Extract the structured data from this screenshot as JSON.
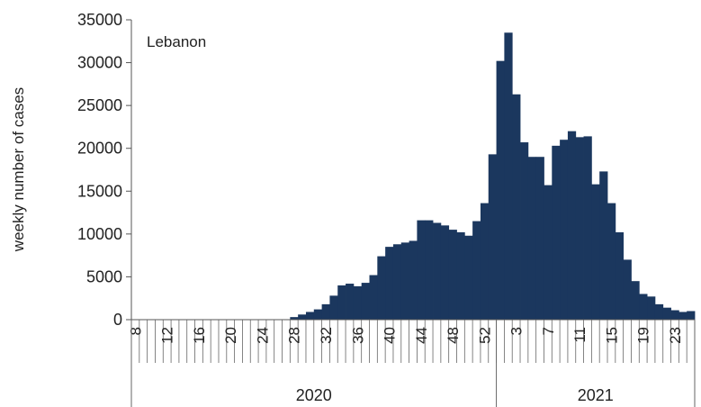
{
  "chart_data": {
    "type": "bar",
    "annotation": "Lebanon",
    "ylabel": "weekly number of cases",
    "ylim": [
      0,
      35000
    ],
    "yticks": [
      0,
      5000,
      10000,
      15000,
      20000,
      25000,
      30000,
      35000
    ],
    "color": "#1b375e",
    "groups": [
      {
        "label": "2020",
        "weeks": [
          8,
          9,
          10,
          11,
          12,
          13,
          14,
          15,
          16,
          17,
          18,
          19,
          20,
          21,
          22,
          23,
          24,
          25,
          26,
          27,
          28,
          29,
          30,
          31,
          32,
          33,
          34,
          35,
          36,
          37,
          38,
          39,
          40,
          41,
          42,
          43,
          44,
          45,
          46,
          47,
          48,
          49,
          50,
          51,
          52,
          53
        ]
      },
      {
        "label": "2021",
        "weeks": [
          1,
          2,
          3,
          4,
          5,
          6,
          7,
          8,
          9,
          10,
          11,
          12,
          13,
          14,
          15,
          16,
          17,
          18,
          19,
          20,
          21,
          22,
          23,
          24,
          25
        ]
      }
    ],
    "tick_labels_2020": [
      "8",
      "12",
      "16",
      "20",
      "24",
      "28",
      "32",
      "36",
      "40",
      "44",
      "48",
      "52"
    ],
    "tick_labels_2021": [
      "3",
      "7",
      "11",
      "15",
      "19",
      "23"
    ],
    "values": [
      0,
      0,
      0,
      0,
      0,
      0,
      0,
      0,
      0,
      0,
      0,
      0,
      0,
      0,
      0,
      0,
      0,
      0,
      0,
      0,
      300,
      600,
      900,
      1200,
      1800,
      2800,
      4000,
      4200,
      3900,
      4300,
      5200,
      7400,
      8500,
      8800,
      9000,
      9200,
      11600,
      11600,
      11300,
      11000,
      10500,
      10200,
      9800,
      11500,
      13600,
      19300,
      30200,
      33500,
      26300,
      20700,
      19000,
      19000,
      15700,
      20300,
      21000,
      22000,
      21300,
      21400,
      15800,
      17300,
      13600,
      10200,
      7000,
      4500,
      3000,
      2700,
      1800,
      1400,
      1100,
      900,
      1000
    ]
  }
}
